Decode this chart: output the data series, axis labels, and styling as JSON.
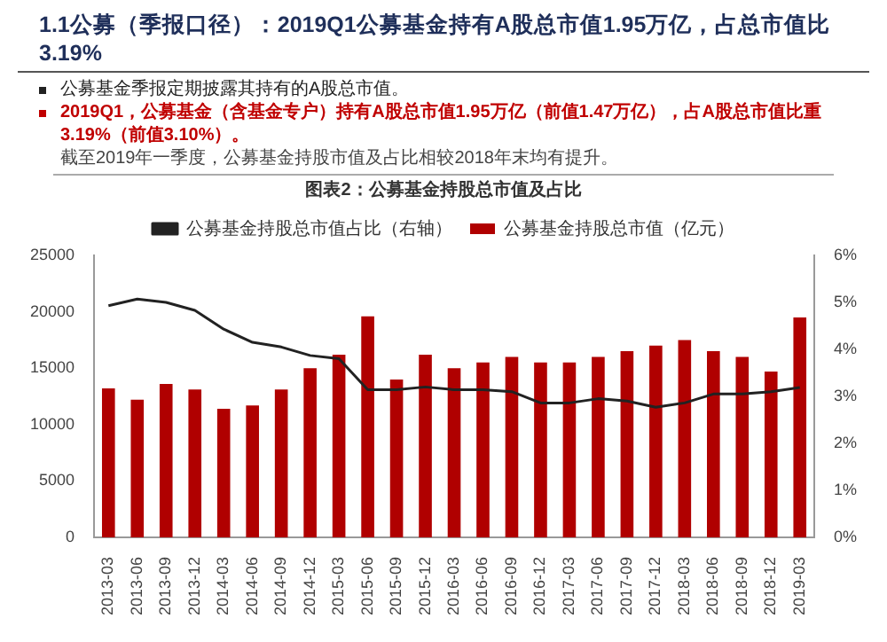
{
  "chart_data": {
    "type": "bar",
    "title": "1.1公募（季报口径）：2019Q1公募基金持有A股总市值1.95万亿，占总市值比3.19%",
    "subtitle": "图表2：公募基金持股总市值及占比",
    "annotations": [
      "公募基金季报定期披露其持有的A股总市值。",
      "2019Q1，公募基金（含基金专户）持有A股总市值1.95万亿（前值1.47万亿），占A股总市值比重3.19%（前值3.10%）。",
      "截至2019年一季度，公募基金持股市值及占比相较2018年末均有提升。"
    ],
    "categories": [
      "2013-03",
      "2013-06",
      "2013-09",
      "2013-12",
      "2014-03",
      "2014-06",
      "2014-09",
      "2014-12",
      "2015-03",
      "2015-06",
      "2015-09",
      "2015-12",
      "2016-03",
      "2016-06",
      "2016-09",
      "2016-12",
      "2017-03",
      "2017-06",
      "2017-09",
      "2017-12",
      "2018-03",
      "2018-06",
      "2018-09",
      "2018-12",
      "2019-03"
    ],
    "series": [
      {
        "name": "公募基金持股总市值（亿元）",
        "color": "#b00000",
        "values": [
          13200,
          12200,
          13600,
          13100,
          11400,
          11700,
          13100,
          15000,
          16200,
          19600,
          14000,
          16200,
          15000,
          15500,
          16000,
          15500,
          15500,
          16000,
          16500,
          17000,
          17500,
          16500,
          16000,
          14700,
          19500
        ]
      },
      {
        "name": "公募基金持股总市值占比（右轴）",
        "type": "line",
        "axis": "y2",
        "color": "#222222",
        "values": [
          4.93,
          5.07,
          5.0,
          4.83,
          4.43,
          4.15,
          4.05,
          3.87,
          3.8,
          3.14,
          3.14,
          3.2,
          3.14,
          3.14,
          3.1,
          2.86,
          2.86,
          2.95,
          2.9,
          2.77,
          2.86,
          3.05,
          3.05,
          3.1,
          3.19
        ]
      }
    ],
    "ylim": [
      0,
      25000
    ],
    "yticks": [
      0,
      5000,
      10000,
      15000,
      20000,
      25000
    ],
    "y2lim": [
      0,
      6
    ],
    "y2ticks": [
      {
        "value": 0,
        "label": "0%"
      },
      {
        "value": 1,
        "label": "1%"
      },
      {
        "value": 2,
        "label": "2%"
      },
      {
        "value": 3,
        "label": "3%"
      },
      {
        "value": 4,
        "label": "4%"
      },
      {
        "value": 5,
        "label": "5%"
      },
      {
        "value": 6,
        "label": "6%"
      }
    ],
    "legend": "top",
    "grid": false,
    "marker": "none",
    "line_style": "solid"
  }
}
